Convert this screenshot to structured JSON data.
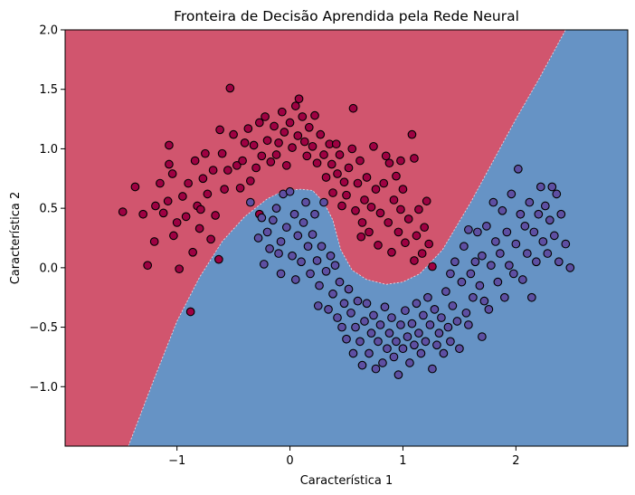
{
  "chart_data": {
    "type": "scatter",
    "title": "Fronteira de Decisão Aprendida pela Rede Neural",
    "xlabel": "Característica 1",
    "ylabel": "Característica 2",
    "xlim": [
      -1.99,
      2.99
    ],
    "ylim": [
      -1.5,
      2.0
    ],
    "xticks": [
      -1,
      0,
      1,
      2
    ],
    "yticks": [
      -1.0,
      -0.5,
      0.0,
      0.5,
      1.0,
      1.5,
      2.0
    ],
    "xtick_labels": [
      "−1",
      "0",
      "1",
      "2"
    ],
    "ytick_labels": [
      "−1.0",
      "−0.5",
      "0.0",
      "0.5",
      "1.0",
      "1.5",
      "2.0"
    ],
    "grid": false,
    "legend": "none",
    "colors": {
      "region_class0": "#d1556e",
      "region_class1": "#6693c5",
      "points_class0": "#9e0142",
      "points_class1": "#5e4fa2",
      "point_edge": "#000000"
    },
    "decision_boundary": [
      [
        -1.43,
        -1.5
      ],
      [
        -1.2,
        -0.93
      ],
      [
        -1.0,
        -0.45
      ],
      [
        -0.8,
        -0.08
      ],
      [
        -0.6,
        0.22
      ],
      [
        -0.4,
        0.43
      ],
      [
        -0.2,
        0.58
      ],
      [
        -0.05,
        0.65
      ],
      [
        0.1,
        0.66
      ],
      [
        0.2,
        0.65
      ],
      [
        0.3,
        0.55
      ],
      [
        0.38,
        0.4
      ],
      [
        0.45,
        0.15
      ],
      [
        0.55,
        -0.02
      ],
      [
        0.68,
        -0.1
      ],
      [
        0.85,
        -0.14
      ],
      [
        1.0,
        -0.12
      ],
      [
        1.15,
        -0.05
      ],
      [
        1.35,
        0.15
      ],
      [
        1.6,
        0.55
      ],
      [
        1.8,
        0.9
      ],
      [
        2.0,
        1.25
      ],
      [
        2.2,
        1.58
      ],
      [
        2.44,
        2.0
      ]
    ],
    "series": [
      {
        "values": [
          [
            -1.48,
            0.47
          ],
          [
            -1.37,
            0.68
          ],
          [
            -1.3,
            0.45
          ],
          [
            -1.26,
            0.02
          ],
          [
            -1.2,
            0.22
          ],
          [
            -1.19,
            0.52
          ],
          [
            -1.15,
            0.71
          ],
          [
            -1.12,
            0.46
          ],
          [
            -1.08,
            0.56
          ],
          [
            -1.07,
            0.87
          ],
          [
            -1.07,
            1.03
          ],
          [
            -1.04,
            0.79
          ],
          [
            -1.03,
            0.27
          ],
          [
            -1.0,
            0.38
          ],
          [
            -0.98,
            -0.01
          ],
          [
            -0.95,
            0.6
          ],
          [
            -0.92,
            0.43
          ],
          [
            -0.9,
            0.71
          ],
          [
            -0.88,
            -0.37
          ],
          [
            -0.86,
            0.13
          ],
          [
            -0.84,
            0.9
          ],
          [
            -0.82,
            0.52
          ],
          [
            -0.8,
            0.33
          ],
          [
            -0.79,
            0.49
          ],
          [
            -0.77,
            0.75
          ],
          [
            -0.75,
            0.96
          ],
          [
            -0.73,
            0.62
          ],
          [
            -0.7,
            0.24
          ],
          [
            -0.68,
            0.82
          ],
          [
            -0.66,
            0.44
          ],
          [
            -0.63,
            0.07
          ],
          [
            -0.6,
            0.96
          ],
          [
            -0.58,
            0.66
          ],
          [
            -0.55,
            0.82
          ],
          [
            -0.53,
            1.51
          ],
          [
            -0.5,
            1.12
          ],
          [
            -0.47,
            0.86
          ],
          [
            -0.44,
            0.67
          ],
          [
            -0.42,
            0.9
          ],
          [
            -0.4,
            1.05
          ],
          [
            -0.37,
            1.17
          ],
          [
            -0.35,
            0.73
          ],
          [
            -0.32,
            1.03
          ],
          [
            -0.3,
            0.84
          ],
          [
            -0.27,
            1.22
          ],
          [
            -0.25,
            0.94
          ],
          [
            -0.22,
            1.27
          ],
          [
            -0.2,
            1.07
          ],
          [
            -0.17,
            0.89
          ],
          [
            -0.14,
            1.19
          ],
          [
            -0.12,
            0.95
          ],
          [
            -0.1,
            1.05
          ],
          [
            -0.07,
            1.31
          ],
          [
            -0.05,
            1.14
          ],
          [
            -0.03,
            0.86
          ],
          [
            0.0,
            1.22
          ],
          [
            0.02,
            1.01
          ],
          [
            0.05,
            1.36
          ],
          [
            0.07,
            1.11
          ],
          [
            0.08,
            1.42
          ],
          [
            0.11,
            1.27
          ],
          [
            0.13,
            1.06
          ],
          [
            0.15,
            0.94
          ],
          [
            0.17,
            1.18
          ],
          [
            0.2,
            1.02
          ],
          [
            0.22,
            1.28
          ],
          [
            0.24,
            0.88
          ],
          [
            0.27,
            1.12
          ],
          [
            0.3,
            0.95
          ],
          [
            0.32,
            0.76
          ],
          [
            0.35,
            1.04
          ],
          [
            0.37,
            0.87
          ],
          [
            0.38,
            0.63
          ],
          [
            0.42,
            0.79
          ],
          [
            0.44,
            0.95
          ],
          [
            0.46,
            0.52
          ],
          [
            0.48,
            0.72
          ],
          [
            0.5,
            0.61
          ],
          [
            0.52,
            0.84
          ],
          [
            0.55,
            1.0
          ],
          [
            0.58,
            0.48
          ],
          [
            0.6,
            0.71
          ],
          [
            0.62,
            0.9
          ],
          [
            0.64,
            0.38
          ],
          [
            0.66,
            0.57
          ],
          [
            0.68,
            0.76
          ],
          [
            0.7,
            0.3
          ],
          [
            0.72,
            0.51
          ],
          [
            0.74,
            1.02
          ],
          [
            0.76,
            0.66
          ],
          [
            0.78,
            0.19
          ],
          [
            0.8,
            0.46
          ],
          [
            0.83,
            0.71
          ],
          [
            0.85,
            0.94
          ],
          [
            0.87,
            0.38
          ],
          [
            0.9,
            0.13
          ],
          [
            0.92,
            0.57
          ],
          [
            0.94,
            0.77
          ],
          [
            0.96,
            0.3
          ],
          [
            0.98,
            0.49
          ],
          [
            1.0,
            0.66
          ],
          [
            1.02,
            0.21
          ],
          [
            1.05,
            0.41
          ],
          [
            1.08,
            1.12
          ],
          [
            1.1,
            0.06
          ],
          [
            1.12,
            0.27
          ],
          [
            1.14,
            0.49
          ],
          [
            1.17,
            0.12
          ],
          [
            1.19,
            0.34
          ],
          [
            1.21,
            0.56
          ],
          [
            1.23,
            0.2
          ],
          [
            1.26,
            0.01
          ],
          [
            0.56,
            1.34
          ],
          [
            -0.62,
            1.16
          ],
          [
            1.1,
            0.92
          ],
          [
            0.88,
            0.88
          ],
          [
            0.98,
            0.9
          ],
          [
            0.41,
            1.04
          ],
          [
            -0.27,
            0.45
          ],
          [
            0.63,
            0.26
          ]
        ]
      },
      {
        "values": [
          [
            -0.35,
            0.55
          ],
          [
            -0.28,
            0.25
          ],
          [
            -0.25,
            0.42
          ],
          [
            -0.23,
            0.03
          ],
          [
            -0.2,
            0.3
          ],
          [
            -0.18,
            0.16
          ],
          [
            -0.15,
            0.4
          ],
          [
            -0.12,
            0.5
          ],
          [
            -0.1,
            0.12
          ],
          [
            -0.08,
            0.22
          ],
          [
            -0.06,
            0.62
          ],
          [
            -0.03,
            0.34
          ],
          [
            0.0,
            0.64
          ],
          [
            0.02,
            0.1
          ],
          [
            0.04,
            0.45
          ],
          [
            0.07,
            0.27
          ],
          [
            0.1,
            0.05
          ],
          [
            0.12,
            0.38
          ],
          [
            0.14,
            0.55
          ],
          [
            0.16,
            0.18
          ],
          [
            0.18,
            -0.05
          ],
          [
            0.2,
            0.28
          ],
          [
            0.22,
            0.45
          ],
          [
            0.24,
            0.06
          ],
          [
            0.26,
            -0.15
          ],
          [
            0.28,
            0.18
          ],
          [
            0.3,
            0.55
          ],
          [
            0.32,
            -0.03
          ],
          [
            0.34,
            -0.35
          ],
          [
            0.36,
            0.1
          ],
          [
            0.38,
            -0.22
          ],
          [
            0.4,
            0.02
          ],
          [
            0.42,
            -0.42
          ],
          [
            0.44,
            -0.12
          ],
          [
            0.46,
            -0.5
          ],
          [
            0.48,
            -0.3
          ],
          [
            0.5,
            -0.6
          ],
          [
            0.52,
            -0.18
          ],
          [
            0.54,
            -0.38
          ],
          [
            0.56,
            -0.72
          ],
          [
            0.58,
            -0.5
          ],
          [
            0.6,
            -0.28
          ],
          [
            0.62,
            -0.62
          ],
          [
            0.64,
            -0.82
          ],
          [
            0.66,
            -0.45
          ],
          [
            0.68,
            -0.3
          ],
          [
            0.7,
            -0.72
          ],
          [
            0.72,
            -0.55
          ],
          [
            0.74,
            -0.4
          ],
          [
            0.76,
            -0.85
          ],
          [
            0.78,
            -0.62
          ],
          [
            0.8,
            -0.48
          ],
          [
            0.82,
            -0.8
          ],
          [
            0.84,
            -0.33
          ],
          [
            0.86,
            -0.68
          ],
          [
            0.88,
            -0.55
          ],
          [
            0.9,
            -0.42
          ],
          [
            0.92,
            -0.75
          ],
          [
            0.94,
            -0.62
          ],
          [
            0.96,
            -0.9
          ],
          [
            0.98,
            -0.48
          ],
          [
            1.0,
            -0.68
          ],
          [
            1.02,
            -0.36
          ],
          [
            1.04,
            -0.58
          ],
          [
            1.06,
            -0.8
          ],
          [
            1.08,
            -0.47
          ],
          [
            1.1,
            -0.65
          ],
          [
            1.12,
            -0.3
          ],
          [
            1.14,
            -0.55
          ],
          [
            1.16,
            -0.72
          ],
          [
            1.18,
            -0.4
          ],
          [
            1.2,
            -0.62
          ],
          [
            1.22,
            -0.25
          ],
          [
            1.24,
            -0.48
          ],
          [
            1.26,
            -0.85
          ],
          [
            1.28,
            -0.35
          ],
          [
            1.3,
            -0.65
          ],
          [
            1.32,
            -0.55
          ],
          [
            1.34,
            -0.42
          ],
          [
            1.36,
            -0.72
          ],
          [
            1.38,
            -0.2
          ],
          [
            1.4,
            -0.5
          ],
          [
            1.42,
            -0.62
          ],
          [
            1.44,
            -0.32
          ],
          [
            1.46,
            0.05
          ],
          [
            1.48,
            -0.45
          ],
          [
            1.5,
            -0.68
          ],
          [
            1.52,
            -0.12
          ],
          [
            1.54,
            0.18
          ],
          [
            1.56,
            -0.38
          ],
          [
            1.58,
            0.32
          ],
          [
            1.6,
            -0.05
          ],
          [
            1.62,
            -0.25
          ],
          [
            1.64,
            0.05
          ],
          [
            1.66,
            0.3
          ],
          [
            1.68,
            -0.15
          ],
          [
            1.7,
            0.1
          ],
          [
            1.72,
            -0.28
          ],
          [
            1.74,
            0.35
          ],
          [
            1.76,
            -0.35
          ],
          [
            1.78,
            0.02
          ],
          [
            1.8,
            0.55
          ],
          [
            1.82,
            0.22
          ],
          [
            1.84,
            -0.12
          ],
          [
            1.86,
            0.12
          ],
          [
            1.88,
            0.48
          ],
          [
            1.9,
            -0.25
          ],
          [
            1.92,
            0.3
          ],
          [
            1.94,
            0.02
          ],
          [
            1.96,
            0.62
          ],
          [
            1.98,
            -0.05
          ],
          [
            2.0,
            0.2
          ],
          [
            2.02,
            0.83
          ],
          [
            2.04,
            0.45
          ],
          [
            2.06,
            -0.1
          ],
          [
            2.08,
            0.35
          ],
          [
            2.1,
            0.12
          ],
          [
            2.12,
            0.55
          ],
          [
            2.14,
            -0.25
          ],
          [
            2.16,
            0.3
          ],
          [
            2.18,
            0.05
          ],
          [
            2.2,
            0.45
          ],
          [
            2.22,
            0.68
          ],
          [
            2.24,
            0.22
          ],
          [
            2.26,
            0.52
          ],
          [
            2.28,
            0.12
          ],
          [
            2.3,
            0.4
          ],
          [
            2.32,
            0.68
          ],
          [
            2.34,
            0.27
          ],
          [
            2.36,
            0.62
          ],
          [
            2.38,
            0.05
          ],
          [
            2.4,
            0.45
          ],
          [
            2.44,
            0.2
          ],
          [
            2.48,
            0.0
          ],
          [
            1.42,
            -0.05
          ],
          [
            1.7,
            -0.58
          ],
          [
            1.58,
            -0.48
          ],
          [
            0.25,
            -0.32
          ],
          [
            -0.08,
            -0.05
          ],
          [
            0.05,
            -0.1
          ]
        ]
      }
    ]
  }
}
